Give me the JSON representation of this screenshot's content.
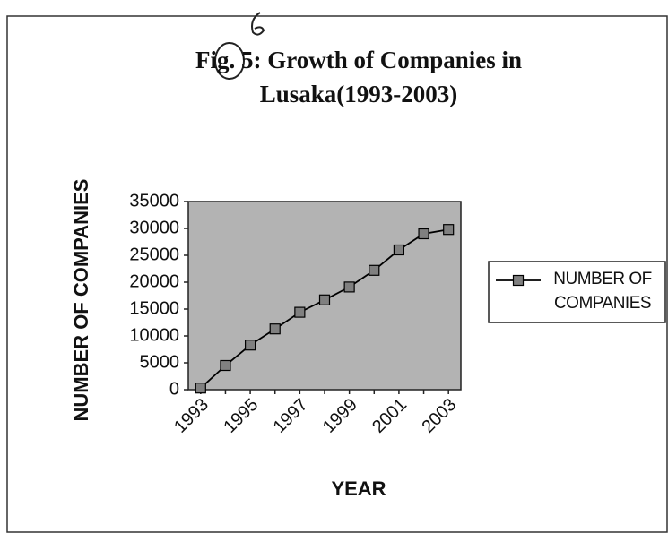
{
  "chart_data": {
    "type": "line",
    "title": [
      "Fig. 5: Growth of Companies in",
      "Lusaka(1993-2003)"
    ],
    "xlabel": "YEAR",
    "ylabel": "NUMBER OF COMPANIES",
    "categories": [
      "1993",
      null,
      "1995",
      null,
      "1997",
      null,
      "1999",
      null,
      "2001",
      null,
      "2003"
    ],
    "series": [
      {
        "name": "NUMBER OF COMPANIES",
        "color": "#000000",
        "values": [
          300,
          4500,
          8300,
          11300,
          14400,
          16700,
          19100,
          22200,
          26000,
          29000,
          29800
        ]
      }
    ],
    "ylim": [
      0,
      35000
    ],
    "yticks": [
      0,
      5000,
      10000,
      15000,
      20000,
      25000,
      30000,
      35000
    ],
    "plot_background": "#b3b3b3",
    "marker_color": "#808080",
    "legend": "right"
  }
}
